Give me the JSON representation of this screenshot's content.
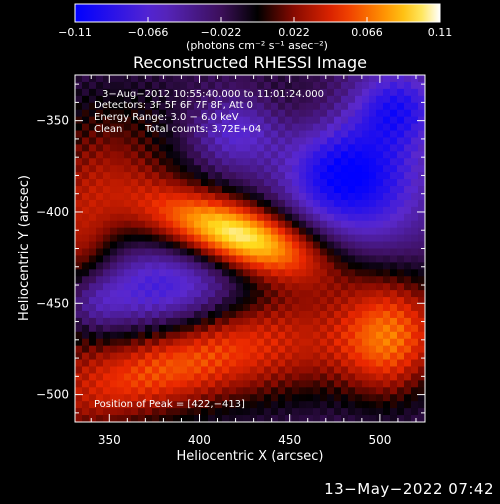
{
  "chart_data": {
    "type": "heatmap",
    "title": "Reconstructed RHESSI Image",
    "xlabel": "Heliocentric X (arcsec)",
    "ylabel": "Heliocentric Y (arcsec)",
    "xlim": [
      331,
      525
    ],
    "ylim": [
      -515,
      -325
    ],
    "x_ticks": [
      "350",
      "400",
      "450",
      "500"
    ],
    "x_tick_values": [
      350,
      400,
      450,
      500
    ],
    "y_ticks": [
      "−350",
      "−400",
      "−450",
      "−500"
    ],
    "y_tick_values": [
      -350,
      -400,
      -450,
      -500
    ],
    "colorbar": {
      "range": [
        -0.11,
        0.11
      ],
      "ticks": [
        "−0.11",
        "−0.066",
        "−0.022",
        "0.022",
        "0.066",
        "0.11"
      ],
      "tick_values": [
        -0.11,
        -0.066,
        -0.022,
        0.022,
        0.066,
        0.11
      ],
      "unit_label": "(photons cm⁻² s⁻¹ asec⁻²)"
    },
    "annotations": [
      "3−Aug−2012 10:55:40.000 to 11:01:24.000",
      "Detectors: 3F 5F 6F 7F 8F, Att 0",
      "Energy Range: 3.0 − 6.0 keV",
      "Clean",
      "Total counts: 3.72E+04"
    ],
    "peak_label": "Position of Peak = [422,−413]",
    "peak": {
      "x": 422,
      "y": -413,
      "value": 0.11
    },
    "features": [
      {
        "type": "peak",
        "x": 422,
        "y": -413,
        "sx": 34,
        "sy": 13,
        "rot": -18,
        "value": 0.104
      },
      {
        "type": "ridge",
        "x": 350,
        "y": -380,
        "sx": 32,
        "sy": 34,
        "rot": 0,
        "value": 0.05
      },
      {
        "type": "ridge",
        "x": 333,
        "y": -430,
        "sx": 14,
        "sy": 28,
        "rot": 0,
        "value": 0.045
      },
      {
        "type": "ridge",
        "x": 430,
        "y": -478,
        "sx": 110,
        "sy": 22,
        "rot": 8,
        "value": 0.06
      },
      {
        "type": "ridge",
        "x": 505,
        "y": -470,
        "sx": 18,
        "sy": 26,
        "rot": 0,
        "value": 0.05
      },
      {
        "type": "ridge",
        "x": 380,
        "y": -485,
        "sx": 60,
        "sy": 16,
        "rot": 25,
        "value": 0.035
      },
      {
        "type": "ridge",
        "x": 445,
        "y": -340,
        "sx": 40,
        "sy": 18,
        "rot": 0,
        "value": 0.02
      },
      {
        "type": "valley",
        "x": 378,
        "y": -442,
        "sx": 30,
        "sy": 18,
        "rot": 0,
        "value": -0.06
      },
      {
        "type": "valley",
        "x": 495,
        "y": -380,
        "sx": 22,
        "sy": 28,
        "rot": 0,
        "value": -0.06
      },
      {
        "type": "valley",
        "x": 420,
        "y": -355,
        "sx": 18,
        "sy": 14,
        "rot": 0,
        "value": -0.05
      },
      {
        "type": "valley",
        "x": 510,
        "y": -342,
        "sx": 16,
        "sy": 14,
        "rot": 0,
        "value": -0.055
      },
      {
        "type": "valley",
        "x": 470,
        "y": -380,
        "sx": 18,
        "sy": 18,
        "rot": 0,
        "value": -0.045
      },
      {
        "type": "valley",
        "x": 340,
        "y": -450,
        "sx": 12,
        "sy": 12,
        "rot": 0,
        "value": -0.04
      }
    ],
    "background": -0.028
  },
  "timestamp": "13−May−2022 07:42"
}
